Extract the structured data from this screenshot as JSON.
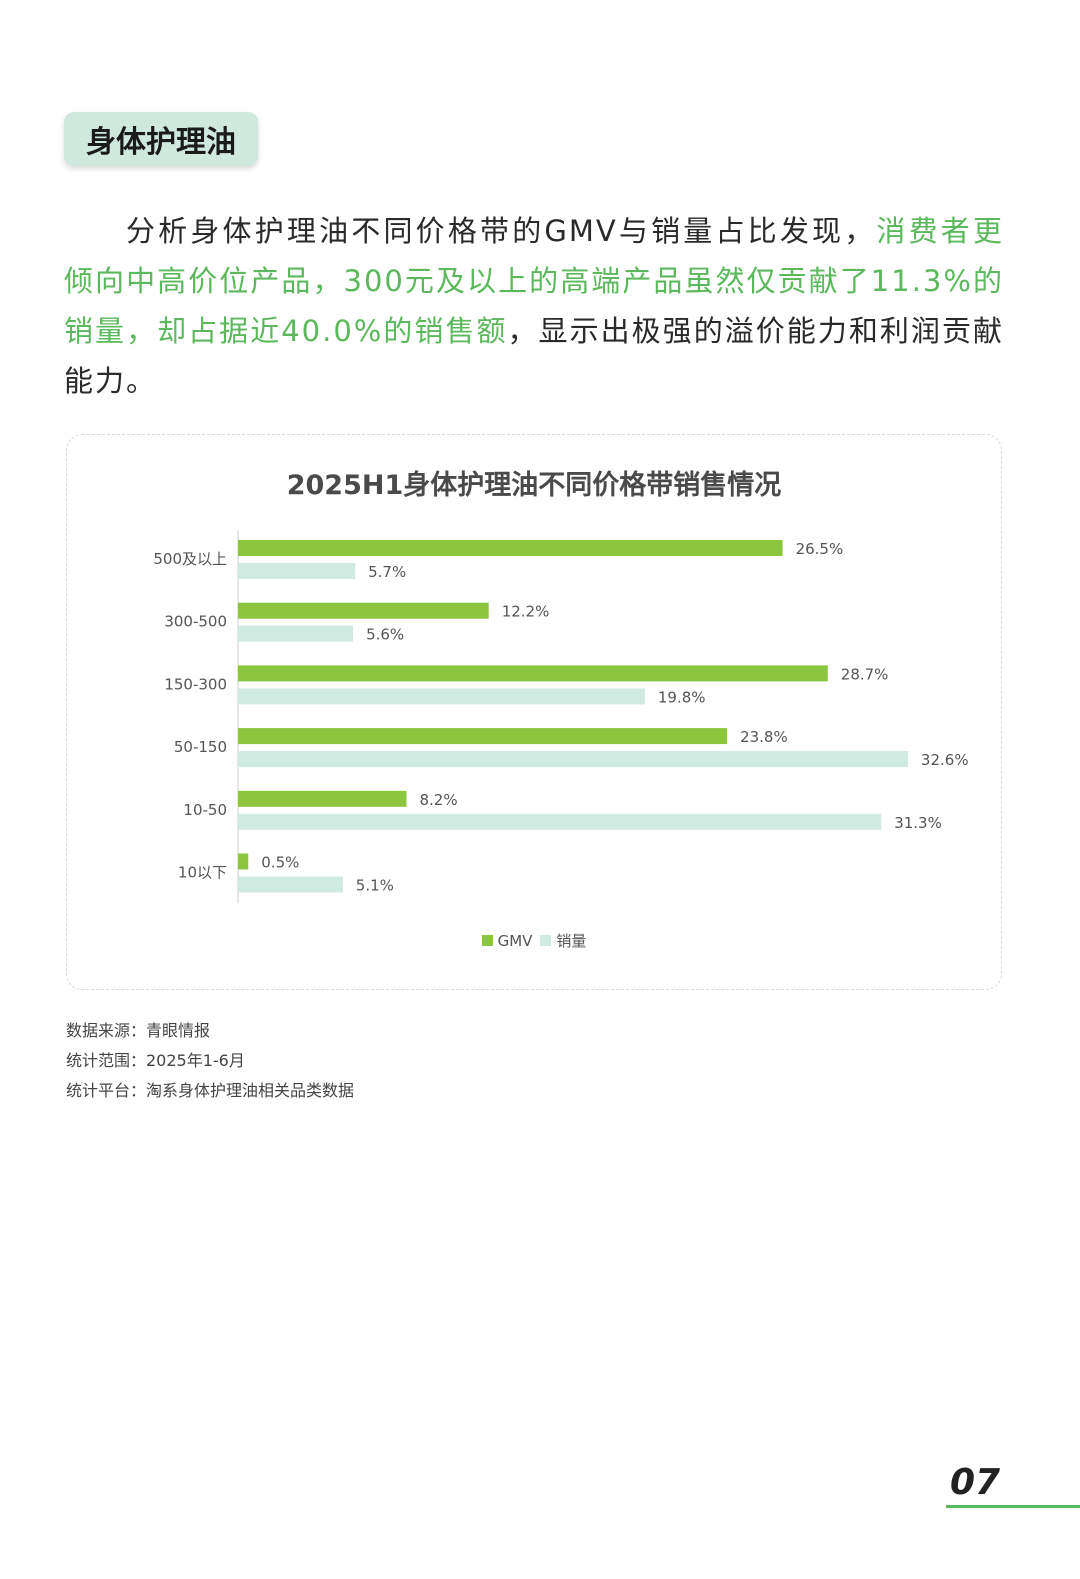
{
  "section": {
    "tag": "身体护理油"
  },
  "intro": {
    "part1": "分析身体护理油不同价格带的GMV与销量占比发现，",
    "highlight": "消费者更倾向中高价位产品，300元及以上的高端产品虽然仅贡献了11.3%的销量，却占据近40.0%的销售额",
    "part2": "，显示出极强的溢价能力和利润贡献能力。"
  },
  "colors": {
    "gmv": "#8cc63f",
    "sales": "#cfeae1",
    "accent": "#5cb85c"
  },
  "chart_data": {
    "type": "bar",
    "orientation": "horizontal",
    "title": "2025H1身体护理油不同价格带销售情况",
    "categories": [
      "500及以上",
      "300-500",
      "150-300",
      "50-150",
      "10-50",
      "10以下"
    ],
    "series": [
      {
        "name": "GMV",
        "values": [
          26.5,
          12.2,
          28.7,
          23.8,
          8.2,
          0.5
        ],
        "labels": [
          "26.5%",
          "12.2%",
          "28.7%",
          "23.8%",
          "8.2%",
          "0.5%"
        ]
      },
      {
        "name": "销量",
        "values": [
          5.7,
          5.6,
          19.8,
          32.6,
          31.3,
          5.1
        ],
        "labels": [
          "5.7%",
          "5.6%",
          "19.8%",
          "32.6%",
          "31.3%",
          "5.1%"
        ]
      }
    ],
    "xlim": [
      0,
      35
    ],
    "grid": false,
    "legend_position": "bottom"
  },
  "notes": {
    "source": "数据来源：青眼情报",
    "range": "统计范围：2025年1-6月",
    "platform": "统计平台：淘系身体护理油相关品类数据"
  },
  "page": {
    "number": "07"
  }
}
